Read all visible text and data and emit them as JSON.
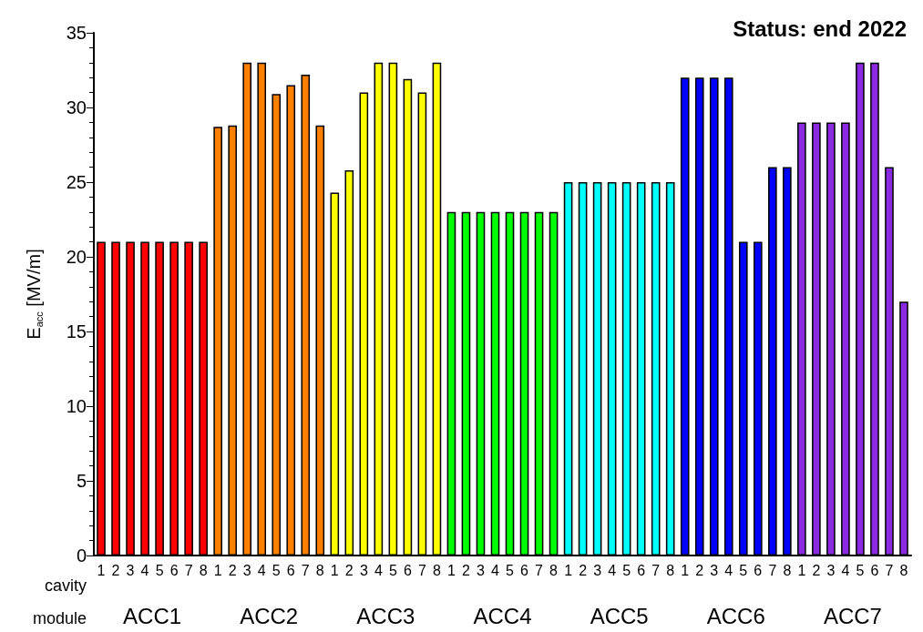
{
  "chart_data": {
    "type": "bar",
    "title": "Status: end 2022",
    "ylabel": "E$_{acc}$ [MV/m]",
    "xlabel": "cavity",
    "annotations": [
      "module"
    ],
    "categories": [
      "1",
      "2",
      "3",
      "4",
      "5",
      "6",
      "7",
      "8",
      "1",
      "2",
      "3",
      "4",
      "5",
      "6",
      "7",
      "8",
      "1",
      "2",
      "3",
      "4",
      "5",
      "6",
      "7",
      "8",
      "1",
      "2",
      "3",
      "4",
      "5",
      "6",
      "7",
      "8",
      "1",
      "2",
      "3",
      "4",
      "5",
      "6",
      "7",
      "8",
      "1",
      "2",
      "3",
      "4",
      "5",
      "6",
      "7",
      "8",
      "1",
      "2",
      "3",
      "4",
      "5",
      "6",
      "7",
      "8"
    ],
    "series": [
      {
        "name": "ACC1",
        "color": "#ff0000",
        "values": [
          21,
          21,
          21,
          21,
          21,
          21,
          21,
          21,
          null,
          null,
          null,
          null,
          null,
          null,
          null,
          null,
          null,
          null,
          null,
          null,
          null,
          null,
          null,
          null,
          null,
          null,
          null,
          null,
          null,
          null,
          null,
          null,
          null,
          null,
          null,
          null,
          null,
          null,
          null,
          null,
          null,
          null,
          null,
          null,
          null,
          null,
          null,
          null,
          null,
          null,
          null,
          null,
          null,
          null,
          null,
          null
        ]
      },
      {
        "name": "ACC2",
        "color": "#ff8000",
        "values": [
          null,
          null,
          null,
          null,
          null,
          null,
          null,
          null,
          28.7,
          28.8,
          33,
          33,
          30.9,
          31.5,
          32.2,
          28.8,
          null,
          null,
          null,
          null,
          null,
          null,
          null,
          null,
          null,
          null,
          null,
          null,
          null,
          null,
          null,
          null,
          null,
          null,
          null,
          null,
          null,
          null,
          null,
          null,
          null,
          null,
          null,
          null,
          null,
          null,
          null,
          null,
          null,
          null,
          null,
          null,
          null,
          null,
          null,
          null
        ]
      },
      {
        "name": "ACC3",
        "color": "#ffff00",
        "values": [
          null,
          null,
          null,
          null,
          null,
          null,
          null,
          null,
          null,
          null,
          null,
          null,
          null,
          null,
          null,
          null,
          24.3,
          25.8,
          31,
          33,
          33,
          31.9,
          31,
          33,
          null,
          null,
          null,
          null,
          null,
          null,
          null,
          null,
          null,
          null,
          null,
          null,
          null,
          null,
          null,
          null,
          null,
          null,
          null,
          null,
          null,
          null,
          null,
          null,
          null,
          null,
          null,
          null,
          null,
          null,
          null,
          null
        ]
      },
      {
        "name": "ACC4",
        "color": "#00ff00",
        "values": [
          null,
          null,
          null,
          null,
          null,
          null,
          null,
          null,
          null,
          null,
          null,
          null,
          null,
          null,
          null,
          null,
          null,
          null,
          null,
          null,
          null,
          null,
          null,
          null,
          23,
          23,
          23,
          23,
          23,
          23,
          23,
          23,
          null,
          null,
          null,
          null,
          null,
          null,
          null,
          null,
          null,
          null,
          null,
          null,
          null,
          null,
          null,
          null,
          null,
          null,
          null,
          null,
          null,
          null,
          null,
          null
        ]
      },
      {
        "name": "ACC5",
        "color": "#00ffff",
        "values": [
          null,
          null,
          null,
          null,
          null,
          null,
          null,
          null,
          null,
          null,
          null,
          null,
          null,
          null,
          null,
          null,
          null,
          null,
          null,
          null,
          null,
          null,
          null,
          null,
          null,
          null,
          null,
          null,
          null,
          null,
          null,
          null,
          25,
          25,
          25,
          25,
          25,
          25,
          25,
          25,
          null,
          null,
          null,
          null,
          null,
          null,
          null,
          null,
          null,
          null,
          null,
          null,
          null,
          null,
          null,
          null
        ]
      },
      {
        "name": "ACC6",
        "color": "#0000ff",
        "values": [
          null,
          null,
          null,
          null,
          null,
          null,
          null,
          null,
          null,
          null,
          null,
          null,
          null,
          null,
          null,
          null,
          null,
          null,
          null,
          null,
          null,
          null,
          null,
          null,
          null,
          null,
          null,
          null,
          null,
          null,
          null,
          null,
          null,
          null,
          null,
          null,
          null,
          null,
          null,
          null,
          32,
          32,
          32,
          32,
          21,
          21,
          26,
          26,
          null,
          null,
          null,
          null,
          null,
          null,
          null,
          null
        ]
      },
      {
        "name": "ACC7",
        "color": "#8a2be2",
        "values": [
          null,
          null,
          null,
          null,
          null,
          null,
          null,
          null,
          null,
          null,
          null,
          null,
          null,
          null,
          null,
          null,
          null,
          null,
          null,
          null,
          null,
          null,
          null,
          null,
          null,
          null,
          null,
          null,
          null,
          null,
          null,
          null,
          null,
          null,
          null,
          null,
          null,
          null,
          null,
          null,
          null,
          null,
          null,
          null,
          null,
          null,
          null,
          null,
          29,
          29,
          29,
          29,
          33,
          33,
          26,
          17
        ]
      }
    ],
    "ylim": [
      0,
      35
    ],
    "yticks": [
      0,
      5,
      10,
      15,
      20,
      25,
      30,
      35
    ],
    "grid": false,
    "legend": false
  }
}
